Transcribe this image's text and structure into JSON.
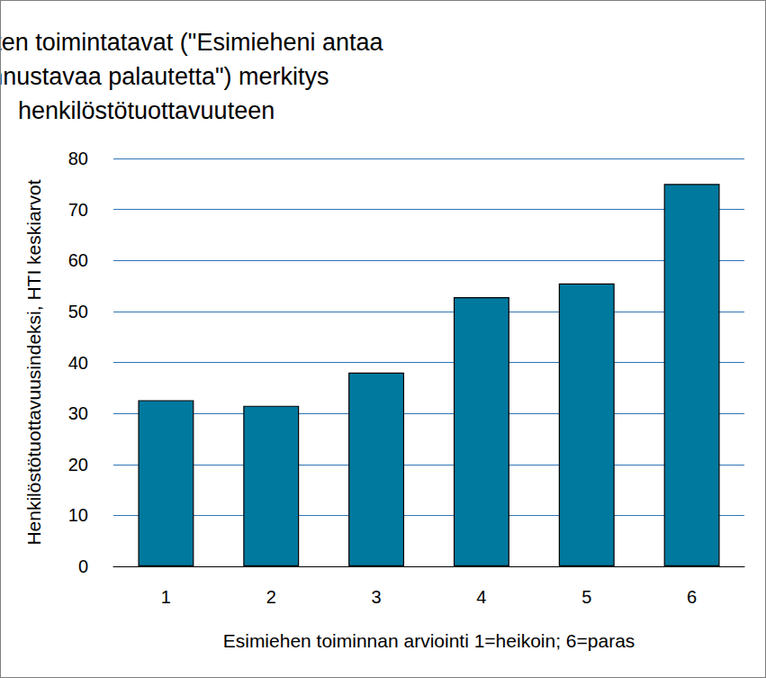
{
  "chart_data": {
    "type": "bar",
    "title": "Esimiesten toimintatavat (\"Esimieheni antaa\nkannustavaa palautetta\") merkitys\nhenkilöstötuottavuuteen",
    "x_label": "Esimiehen toiminnan arviointi 1=heikoin; 6=paras",
    "y_label": "Henkilöstötuottavuusindeksi, HTI keskiarvot",
    "categories": [
      "1",
      "2",
      "3",
      "4",
      "5",
      "6"
    ],
    "values": [
      32.6,
      31.5,
      38,
      52.8,
      55.5,
      75
    ],
    "color": "#00799f",
    "ylim": [
      0,
      80
    ],
    "yticks": [
      0,
      10,
      20,
      30,
      40,
      50,
      60,
      70,
      80
    ],
    "grid": true
  }
}
